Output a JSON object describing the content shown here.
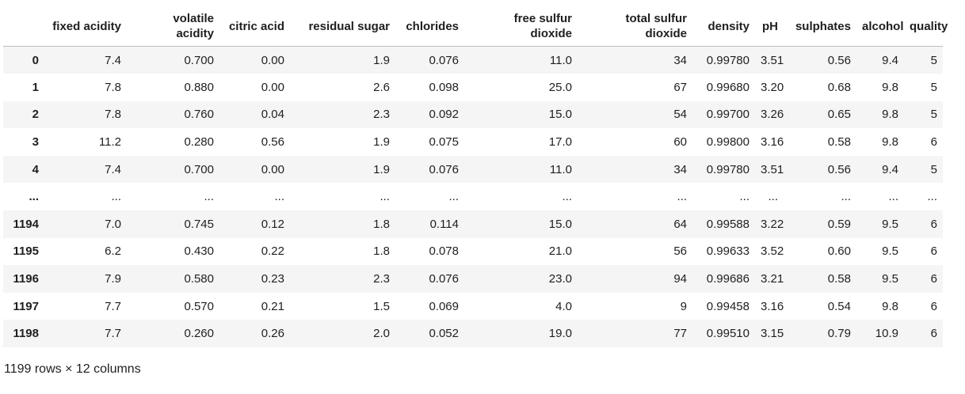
{
  "table": {
    "columns": [
      "fixed acidity",
      "volatile acidity",
      "citric acid",
      "residual sugar",
      "chlorides",
      "free sulfur dioxide",
      "total sulfur dioxide",
      "density",
      "pH",
      "sulphates",
      "alcohol",
      "quality"
    ],
    "rows": [
      {
        "index": "0",
        "cells": [
          "7.4",
          "0.700",
          "0.00",
          "1.9",
          "0.076",
          "11.0",
          "34",
          "0.99780",
          "3.51",
          "0.56",
          "9.4",
          "5"
        ]
      },
      {
        "index": "1",
        "cells": [
          "7.8",
          "0.880",
          "0.00",
          "2.6",
          "0.098",
          "25.0",
          "67",
          "0.99680",
          "3.20",
          "0.68",
          "9.8",
          "5"
        ]
      },
      {
        "index": "2",
        "cells": [
          "7.8",
          "0.760",
          "0.04",
          "2.3",
          "0.092",
          "15.0",
          "54",
          "0.99700",
          "3.26",
          "0.65",
          "9.8",
          "5"
        ]
      },
      {
        "index": "3",
        "cells": [
          "11.2",
          "0.280",
          "0.56",
          "1.9",
          "0.075",
          "17.0",
          "60",
          "0.99800",
          "3.16",
          "0.58",
          "9.8",
          "6"
        ]
      },
      {
        "index": "4",
        "cells": [
          "7.4",
          "0.700",
          "0.00",
          "1.9",
          "0.076",
          "11.0",
          "34",
          "0.99780",
          "3.51",
          "0.56",
          "9.4",
          "5"
        ]
      },
      {
        "index": "...",
        "cells": [
          "...",
          "...",
          "...",
          "...",
          "...",
          "...",
          "...",
          "...",
          "...",
          "...",
          "...",
          "..."
        ]
      },
      {
        "index": "1194",
        "cells": [
          "7.0",
          "0.745",
          "0.12",
          "1.8",
          "0.114",
          "15.0",
          "64",
          "0.99588",
          "3.22",
          "0.59",
          "9.5",
          "6"
        ]
      },
      {
        "index": "1195",
        "cells": [
          "6.2",
          "0.430",
          "0.22",
          "1.8",
          "0.078",
          "21.0",
          "56",
          "0.99633",
          "3.52",
          "0.60",
          "9.5",
          "6"
        ]
      },
      {
        "index": "1196",
        "cells": [
          "7.9",
          "0.580",
          "0.23",
          "2.3",
          "0.076",
          "23.0",
          "94",
          "0.99686",
          "3.21",
          "0.58",
          "9.5",
          "6"
        ]
      },
      {
        "index": "1197",
        "cells": [
          "7.7",
          "0.570",
          "0.21",
          "1.5",
          "0.069",
          "4.0",
          "9",
          "0.99458",
          "3.16",
          "0.54",
          "9.8",
          "6"
        ]
      },
      {
        "index": "1198",
        "cells": [
          "7.7",
          "0.260",
          "0.26",
          "2.0",
          "0.052",
          "19.0",
          "77",
          "0.99510",
          "3.15",
          "0.79",
          "10.9",
          "6"
        ]
      }
    ]
  },
  "footer": {
    "shape_text": "1199 rows × 12 columns"
  }
}
